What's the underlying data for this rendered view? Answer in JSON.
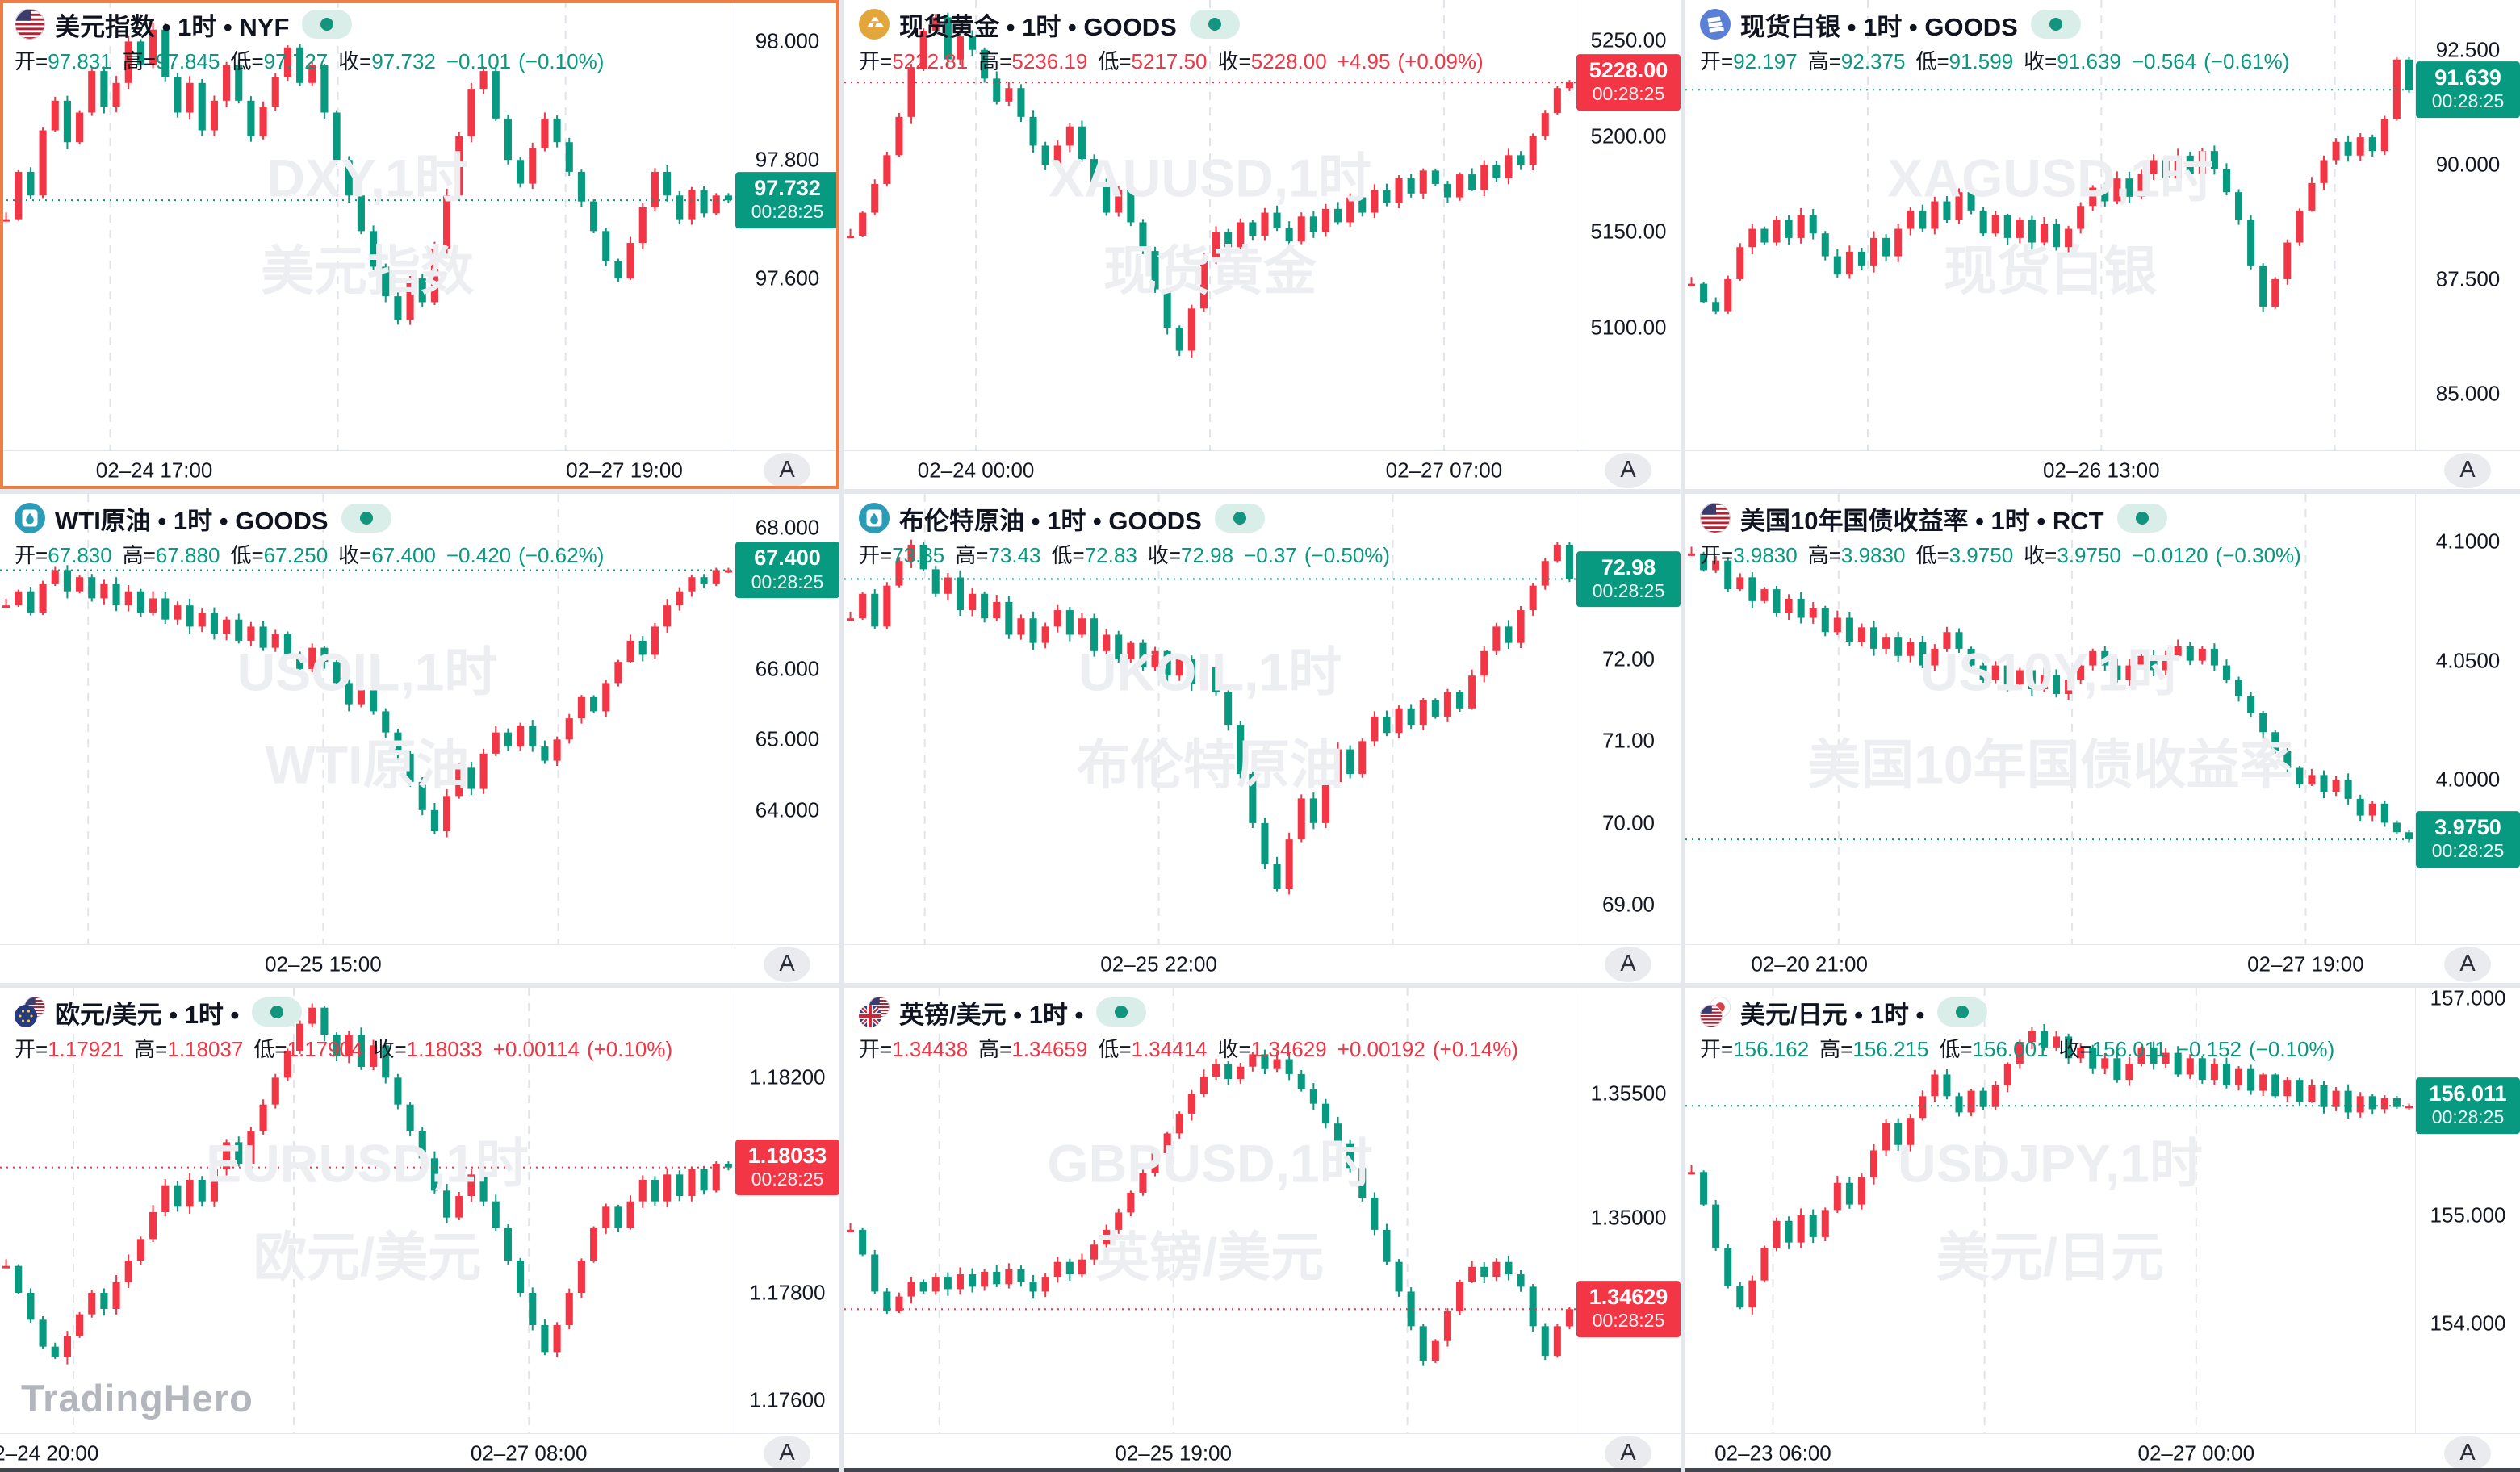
{
  "colors": {
    "up": "#f23645",
    "down": "#089981",
    "grid": "#e1e4ea",
    "text": "#131722",
    "watermark": "#eceef2",
    "selection": "#ef7e45",
    "button_bg": "#e9ebef",
    "pill_bg": "#d9eee8",
    "pill_dot": "#13947c",
    "brand_watermark": "#b3b6bc"
  },
  "labels": {
    "open": "开=",
    "high": "高=",
    "low": "低=",
    "close": "收="
  },
  "axis_button_label": "A",
  "status_time": "00:28:25",
  "brand": "TradingHero",
  "charts": [
    {
      "title": "美元指数 • 1时 • NYF",
      "icon": "us-flag",
      "selected": true,
      "ohlc": {
        "open": "97.831",
        "high": "97.845",
        "low": "97.727",
        "close": "97.732",
        "change": "−0.101",
        "change_pct": "(−0.10%)"
      }
    },
    {
      "title": "现货黄金 • 1时 • GOODS",
      "icon": "gold",
      "selected": false,
      "ohlc": {
        "open": "5222.81",
        "high": "5236.19",
        "low": "5217.50",
        "close": "5228.00",
        "change": "+4.95",
        "change_pct": "(+0.09%)"
      }
    },
    {
      "title": "现货白银 • 1时 • GOODS",
      "icon": "silver",
      "selected": false,
      "ohlc": {
        "open": "92.197",
        "high": "92.375",
        "low": "91.599",
        "close": "91.639",
        "change": "−0.564",
        "change_pct": "(−0.61%)"
      }
    },
    {
      "title": "WTI原油 • 1时 • GOODS",
      "icon": "oil",
      "selected": false,
      "ohlc": {
        "open": "67.830",
        "high": "67.880",
        "low": "67.250",
        "close": "67.400",
        "change": "−0.420",
        "change_pct": "(−0.62%)"
      }
    },
    {
      "title": "布伦特原油 • 1时 • GOODS",
      "icon": "oil",
      "selected": false,
      "ohlc": {
        "open": "73.35",
        "high": "73.43",
        "low": "72.83",
        "close": "72.98",
        "change": "−0.37",
        "change_pct": "(−0.50%)"
      }
    },
    {
      "title": "美国10年国债收益率 • 1时 • RCT",
      "icon": "us-flag",
      "selected": false,
      "ohlc": {
        "open": "3.9830",
        "high": "3.9830",
        "low": "3.9750",
        "close": "3.9750",
        "change": "−0.0120",
        "change_pct": "(−0.30%)"
      }
    },
    {
      "title": "欧元/美元 • 1时 •",
      "icon": "eur-usd",
      "selected": false,
      "ohlc": {
        "open": "1.17921",
        "high": "1.18037",
        "low": "1.17904",
        "close": "1.18033",
        "change": "+0.00114",
        "change_pct": "(+0.10%)"
      }
    },
    {
      "title": "英镑/美元 • 1时 •",
      "icon": "gbp-usd",
      "selected": false,
      "ohlc": {
        "open": "1.34438",
        "high": "1.34659",
        "low": "1.34414",
        "close": "1.34629",
        "change": "+0.00192",
        "change_pct": "(+0.14%)"
      }
    },
    {
      "title": "美元/日元 • 1时 •",
      "icon": "usd-jpy",
      "selected": false,
      "ohlc": {
        "open": "156.162",
        "high": "156.215",
        "low": "156.001",
        "close": "156.011",
        "change": "−0.152",
        "change_pct": "(−0.10%)"
      }
    }
  ],
  "chart_data": [
    {
      "type": "candlestick",
      "symbol": "DXY",
      "period": "1时",
      "direction": "down",
      "watermark": [
        "DXY,1时",
        "美元指数"
      ],
      "ylim": [
        97.31,
        98.07
      ],
      "yticks": [
        "98.000",
        "97.800",
        "97.600"
      ],
      "close": 97.732,
      "close_label": "97.732",
      "times": [
        {
          "label": "02–24 17:00",
          "f": 0.21
        },
        {
          "label": "02–27 19:00",
          "f": 0.85
        }
      ],
      "grid_f": [
        0.15,
        0.46,
        0.77
      ],
      "closes": [
        97.7,
        97.78,
        97.74,
        97.85,
        97.9,
        97.83,
        97.88,
        97.95,
        97.89,
        97.93,
        98.0,
        97.96,
        98.02,
        97.94,
        97.88,
        97.93,
        97.85,
        97.9,
        97.96,
        97.9,
        97.84,
        97.89,
        97.94,
        97.99,
        97.93,
        97.96,
        97.88,
        97.8,
        97.74,
        97.68,
        97.62,
        97.57,
        97.53,
        97.6,
        97.56,
        97.65,
        97.74,
        97.84,
        97.92,
        97.95,
        97.87,
        97.8,
        97.76,
        97.82,
        97.87,
        97.83,
        97.78,
        97.73,
        97.68,
        97.63,
        97.6,
        97.66,
        97.72,
        97.78,
        97.74,
        97.7,
        97.75,
        97.71,
        97.74,
        97.732
      ]
    },
    {
      "type": "candlestick",
      "symbol": "XAUUSD",
      "period": "1时",
      "direction": "up",
      "watermark": [
        "XAUUSD,1时",
        "现货黄金"
      ],
      "ylim": [
        5036,
        5271
      ],
      "yticks": [
        "5250.00",
        "5200.00",
        "5150.00",
        "5100.00"
      ],
      "close": 5228.0,
      "close_label": "5228.00",
      "times": [
        {
          "label": "02–24 00:00",
          "f": 0.18
        },
        {
          "label": "02–27 07:00",
          "f": 0.82
        }
      ],
      "grid_f": [
        0.18,
        0.5,
        0.82
      ],
      "closes": [
        5148,
        5160,
        5175,
        5190,
        5210,
        5235,
        5255,
        5262,
        5240,
        5252,
        5245,
        5230,
        5218,
        5225,
        5210,
        5195,
        5185,
        5195,
        5205,
        5188,
        5175,
        5160,
        5172,
        5155,
        5140,
        5120,
        5100,
        5088,
        5110,
        5135,
        5150,
        5142,
        5155,
        5148,
        5160,
        5152,
        5145,
        5158,
        5150,
        5162,
        5155,
        5168,
        5160,
        5172,
        5165,
        5178,
        5170,
        5182,
        5175,
        5168,
        5180,
        5172,
        5185,
        5178,
        5190,
        5185,
        5200,
        5212,
        5225,
        5228
      ]
    },
    {
      "type": "candlestick",
      "symbol": "XAGUSD",
      "period": "1时",
      "direction": "down",
      "watermark": [
        "XAGUSD,1时",
        "现货白银"
      ],
      "ylim": [
        83.76,
        93.6
      ],
      "yticks": [
        "92.500",
        "90.000",
        "87.500",
        "85.000"
      ],
      "close": 91.639,
      "close_label": "91.639",
      "times": [
        {
          "label": "02–26 13:00",
          "f": 0.57
        }
      ],
      "grid_f": [
        0.25,
        0.57,
        0.89
      ],
      "closes": [
        87.4,
        87.0,
        86.8,
        87.5,
        88.2,
        88.6,
        88.3,
        88.8,
        88.4,
        88.9,
        88.5,
        88.0,
        87.6,
        88.1,
        87.8,
        88.4,
        88.0,
        88.6,
        89.0,
        88.6,
        89.2,
        88.8,
        89.4,
        89.0,
        88.5,
        88.9,
        88.4,
        88.8,
        88.3,
        88.7,
        88.2,
        88.6,
        89.1,
        89.5,
        89.2,
        89.7,
        89.3,
        89.8,
        90.1,
        89.7,
        90.2,
        89.8,
        90.3,
        89.9,
        89.4,
        88.8,
        87.8,
        86.9,
        87.5,
        88.3,
        89.0,
        89.6,
        90.1,
        90.5,
        90.2,
        90.6,
        90.3,
        91.0,
        92.3,
        91.64
      ]
    },
    {
      "type": "candlestick",
      "symbol": "USOIL",
      "period": "1时",
      "direction": "down",
      "watermark": [
        "USOIL,1时",
        "WTI原油"
      ],
      "ylim": [
        62.1,
        68.48
      ],
      "yticks": [
        "68.000",
        "66.000",
        "65.000",
        "64.000"
      ],
      "close": 67.4,
      "close_label": "67.400",
      "times": [
        {
          "label": "02–25 15:00",
          "f": 0.44
        }
      ],
      "grid_f": [
        0.12,
        0.44,
        0.76
      ],
      "closes": [
        66.9,
        67.1,
        66.8,
        67.2,
        67.4,
        67.1,
        67.3,
        67.0,
        67.2,
        66.9,
        67.1,
        66.8,
        67.0,
        66.7,
        66.9,
        66.6,
        66.8,
        66.5,
        66.7,
        66.4,
        66.6,
        66.3,
        66.5,
        66.2,
        66.0,
        66.3,
        66.1,
        65.8,
        65.5,
        65.7,
        65.4,
        65.1,
        64.8,
        64.4,
        64.0,
        63.7,
        64.2,
        64.6,
        64.3,
        64.8,
        65.1,
        64.9,
        65.2,
        64.9,
        64.7,
        65.0,
        65.3,
        65.6,
        65.4,
        65.8,
        66.1,
        66.4,
        66.2,
        66.6,
        66.9,
        67.1,
        67.3,
        67.2,
        67.4,
        67.4
      ]
    },
    {
      "type": "candlestick",
      "symbol": "UKOIL",
      "period": "1时",
      "direction": "down",
      "watermark": [
        "UKOIL,1时",
        "布伦特原油"
      ],
      "ylim": [
        68.52,
        74.02
      ],
      "yticks": [
        "72.00",
        "71.00",
        "70.00",
        "69.00"
      ],
      "close": 72.98,
      "close_label": "72.98",
      "times": [
        {
          "label": "02–25 22:00",
          "f": 0.43
        }
      ],
      "grid_f": [
        0.11,
        0.43,
        0.75
      ],
      "closes": [
        72.5,
        72.8,
        72.4,
        72.9,
        73.2,
        73.4,
        73.1,
        72.8,
        73.0,
        72.6,
        72.8,
        72.5,
        72.7,
        72.3,
        72.5,
        72.2,
        72.4,
        72.6,
        72.3,
        72.5,
        72.1,
        72.3,
        72.0,
        72.2,
        71.9,
        72.1,
        71.8,
        72.0,
        71.7,
        71.9,
        71.6,
        71.2,
        70.6,
        70.0,
        69.5,
        69.2,
        69.8,
        70.3,
        70.0,
        70.5,
        70.9,
        70.6,
        71.0,
        71.3,
        71.1,
        71.4,
        71.2,
        71.5,
        71.3,
        71.6,
        71.4,
        71.8,
        72.1,
        72.4,
        72.2,
        72.6,
        72.9,
        73.2,
        73.4,
        72.98
      ]
    },
    {
      "type": "candlestick",
      "symbol": "US10Y",
      "period": "1时",
      "direction": "down",
      "watermark": [
        "US10Y,1时",
        "美国10年国债收益率"
      ],
      "ylim": [
        3.931,
        4.12
      ],
      "yticks": [
        "4.1000",
        "4.0500",
        "4.0000"
      ],
      "close": 3.975,
      "close_label": "3.9750",
      "times": [
        {
          "label": "02–20 21:00",
          "f": 0.17
        },
        {
          "label": "02–27 19:00",
          "f": 0.85
        }
      ],
      "grid_f": [
        0.21,
        0.53,
        0.85
      ],
      "closes": [
        4.095,
        4.088,
        4.092,
        4.08,
        4.085,
        4.075,
        4.08,
        4.07,
        4.076,
        4.068,
        4.072,
        4.062,
        4.068,
        4.058,
        4.064,
        4.055,
        4.06,
        4.052,
        4.058,
        4.048,
        4.055,
        4.062,
        4.055,
        4.048,
        4.042,
        4.048,
        4.04,
        4.046,
        4.038,
        4.044,
        4.036,
        4.042,
        4.048,
        4.054,
        4.048,
        4.042,
        4.048,
        4.052,
        4.046,
        4.052,
        4.056,
        4.05,
        4.055,
        4.048,
        4.042,
        4.035,
        4.028,
        4.02,
        4.012,
        4.005,
        3.998,
        4.002,
        3.995,
        4.0,
        3.992,
        3.985,
        3.99,
        3.982,
        3.978,
        3.975
      ]
    },
    {
      "type": "candlestick",
      "symbol": "EURUSD",
      "period": "1时",
      "direction": "up",
      "watermark": [
        "EURUSD,1时",
        "欧元/美元"
      ],
      "ylim": [
        1.17539,
        1.18367
      ],
      "yticks": [
        "1.18200",
        "1.17800",
        "1.17600"
      ],
      "close": 1.18033,
      "close_label": "1.18033",
      "times": [
        {
          "label": "02–24 20:00",
          "f": 0.055
        },
        {
          "label": "02–27 08:00",
          "f": 0.72
        }
      ],
      "grid_f": [
        0.1,
        0.4,
        0.72
      ],
      "closes": [
        1.1785,
        1.178,
        1.1775,
        1.177,
        1.1768,
        1.1772,
        1.1776,
        1.178,
        1.1777,
        1.1782,
        1.1786,
        1.179,
        1.1795,
        1.18,
        1.1796,
        1.1801,
        1.1797,
        1.1803,
        1.1808,
        1.1804,
        1.181,
        1.1815,
        1.182,
        1.1825,
        1.183,
        1.1833,
        1.1828,
        1.1824,
        1.1828,
        1.1822,
        1.1826,
        1.182,
        1.1815,
        1.181,
        1.1805,
        1.1799,
        1.1794,
        1.1798,
        1.1802,
        1.1797,
        1.1792,
        1.1786,
        1.178,
        1.1774,
        1.1769,
        1.1774,
        1.178,
        1.1786,
        1.1792,
        1.1796,
        1.1792,
        1.1797,
        1.1801,
        1.1797,
        1.1802,
        1.1798,
        1.1803,
        1.1799,
        1.1804,
        1.18033
      ]
    },
    {
      "type": "candlestick",
      "symbol": "GBPUSD",
      "period": "1时",
      "direction": "up",
      "watermark": [
        "GBPUSD,1时",
        "英镑/美元"
      ],
      "ylim": [
        1.34127,
        1.35929
      ],
      "yticks": [
        "1.35500",
        "1.35000"
      ],
      "close": 1.34629,
      "close_label": "1.34629",
      "times": [
        {
          "label": "02–25 19:00",
          "f": 0.45
        }
      ],
      "grid_f": [
        0.13,
        0.45,
        0.77
      ],
      "closes": [
        1.3495,
        1.3485,
        1.347,
        1.3462,
        1.3468,
        1.3474,
        1.347,
        1.3476,
        1.3471,
        1.3477,
        1.3472,
        1.3478,
        1.3473,
        1.3479,
        1.3474,
        1.347,
        1.3476,
        1.3482,
        1.3477,
        1.3483,
        1.3489,
        1.3495,
        1.3502,
        1.351,
        1.3518,
        1.3526,
        1.3534,
        1.3542,
        1.355,
        1.3557,
        1.3562,
        1.3556,
        1.3561,
        1.3566,
        1.356,
        1.3564,
        1.3558,
        1.3552,
        1.3546,
        1.3538,
        1.353,
        1.352,
        1.3508,
        1.3495,
        1.3482,
        1.347,
        1.3456,
        1.3442,
        1.345,
        1.3462,
        1.3474,
        1.348,
        1.3476,
        1.3482,
        1.3477,
        1.3472,
        1.3456,
        1.3444,
        1.3456,
        1.34629
      ]
    },
    {
      "type": "candlestick",
      "symbol": "USDJPY",
      "period": "1时",
      "direction": "down",
      "watermark": [
        "USDJPY,1时",
        "美元/日元"
      ],
      "ylim": [
        152.99,
        157.1
      ],
      "yticks": [
        "157.000",
        "155.000",
        "154.000"
      ],
      "close": 156.011,
      "close_label": "156.011",
      "times": [
        {
          "label": "02–23 06:00",
          "f": 0.12
        },
        {
          "label": "02–27 00:00",
          "f": 0.7
        }
      ],
      "grid_f": [
        0.12,
        0.41,
        0.7
      ],
      "closes": [
        155.4,
        155.1,
        154.7,
        154.35,
        154.15,
        154.4,
        154.7,
        154.95,
        154.75,
        155.0,
        154.8,
        155.05,
        155.3,
        155.1,
        155.35,
        155.6,
        155.85,
        155.65,
        155.9,
        156.1,
        156.3,
        156.1,
        155.95,
        156.15,
        156.0,
        156.2,
        156.4,
        156.6,
        156.7,
        156.55,
        156.65,
        156.45,
        156.55,
        156.35,
        156.45,
        156.25,
        156.4,
        156.55,
        156.4,
        156.5,
        156.3,
        156.45,
        156.25,
        156.4,
        156.2,
        156.35,
        156.15,
        156.3,
        156.1,
        156.25,
        156.05,
        156.2,
        156.0,
        156.15,
        155.95,
        156.1,
        155.98,
        156.08,
        156.0,
        156.011
      ]
    }
  ]
}
